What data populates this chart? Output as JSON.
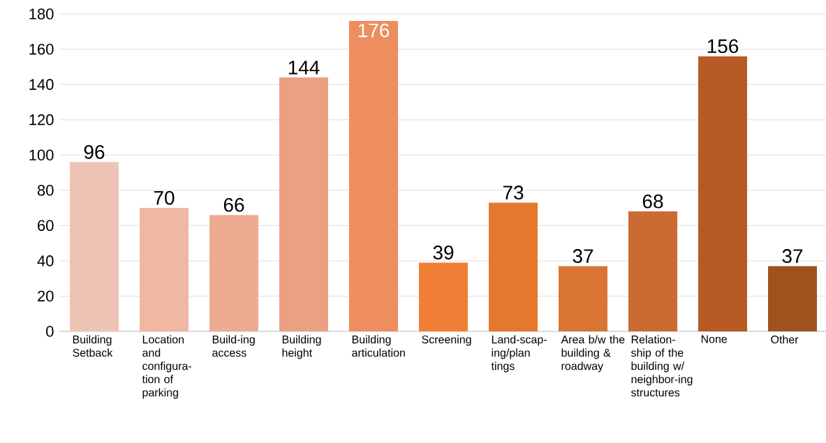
{
  "chart_data": {
    "type": "bar",
    "categories": [
      "Building Setback",
      "Location and configura-tion of parking",
      "Build-ing access",
      "Building height",
      "Building articulation",
      "Screening",
      "Land-scap-ing/plan tings",
      "Area b/w the building & roadway",
      "Relation-ship of the building w/ neighbor-ing structures",
      "None",
      "Other"
    ],
    "values": [
      96,
      70,
      66,
      144,
      176,
      39,
      73,
      37,
      68,
      156,
      37
    ],
    "colors": [
      "#edc4b6",
      "#f0b8a3",
      "#eeab92",
      "#eaa083",
      "#ee8d5f",
      "#f07e34",
      "#e6782e",
      "#d97435",
      "#cc6a34",
      "#b75a24",
      "#a0521e"
    ],
    "ylim": [
      0,
      180
    ],
    "yticks": [
      0,
      20,
      40,
      60,
      80,
      100,
      120,
      140,
      160,
      180
    ],
    "grid": "y",
    "data_labels": true
  }
}
